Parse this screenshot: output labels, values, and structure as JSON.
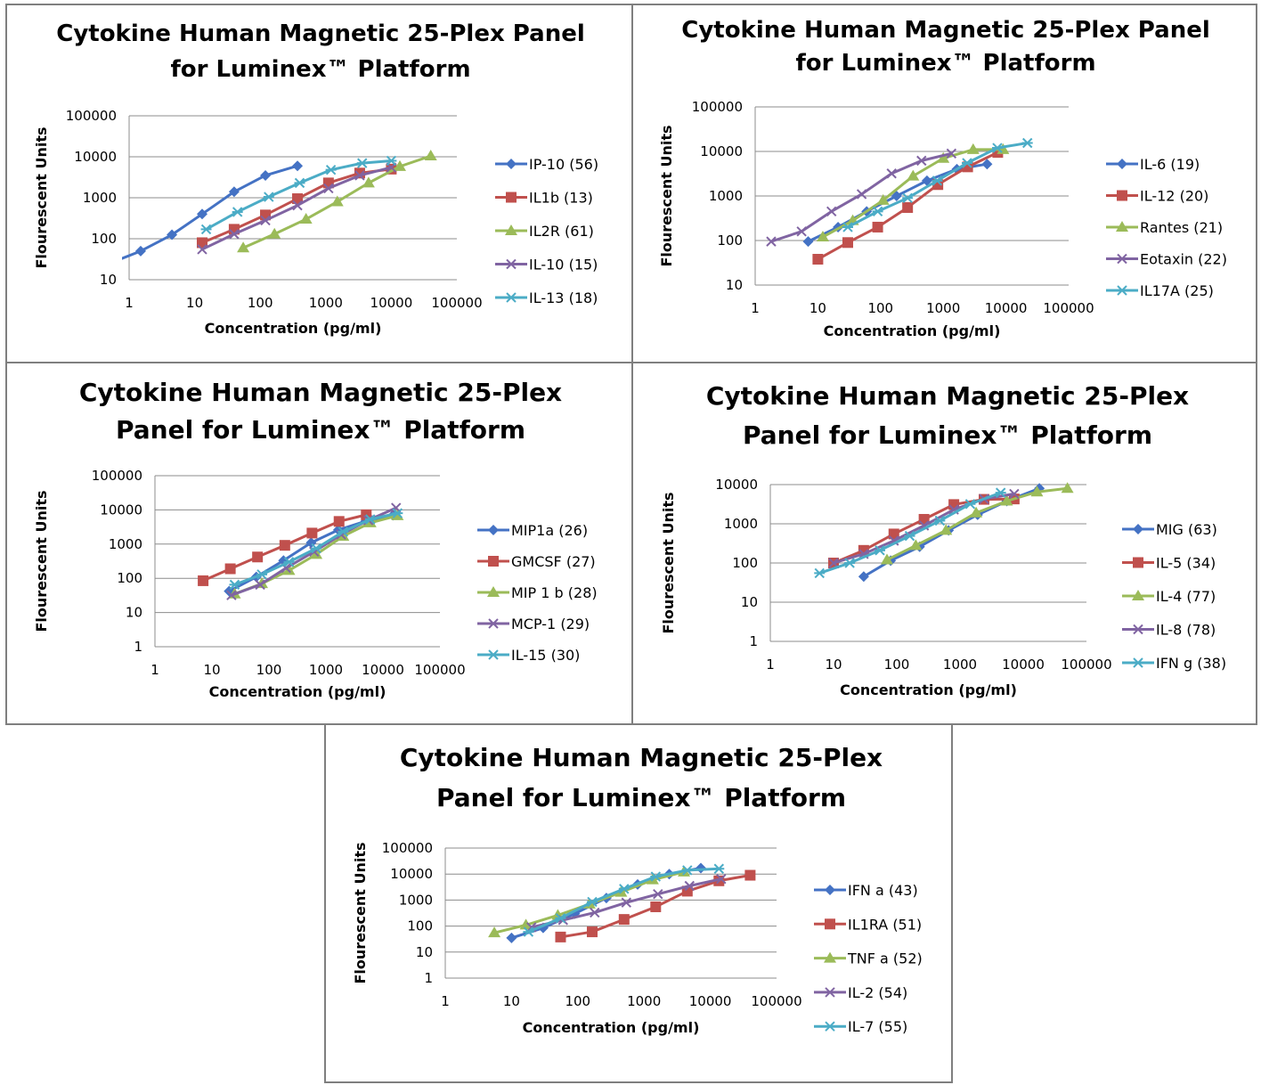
{
  "colors": [
    "#4472c4",
    "#c0504d",
    "#9bbb59",
    "#8064a2",
    "#4bacc6"
  ],
  "chart_data": [
    {
      "type": "line",
      "title": [
        "Cytokine Human Magnetic 25-Plex Panel",
        "for Luminex™ Platform"
      ],
      "xlabel": "Concentration (pg/ml)",
      "ylabel": "Flourescent Units",
      "xscale": "log",
      "yscale": "log",
      "xlim": [
        1,
        100000
      ],
      "ylim": [
        10,
        100000
      ],
      "xticks": [
        "1",
        "10",
        "100",
        "1000",
        "10000",
        "100000"
      ],
      "yticks": [
        "10",
        "100",
        "1000",
        "10000",
        "100000"
      ],
      "grid": "horizontal",
      "legend": "right",
      "series": [
        {
          "name": "IP-10 (56)",
          "marker": "diamond",
          "x": [
            0.5,
            1.5,
            4.5,
            13,
            40,
            120,
            370
          ],
          "y": [
            25,
            50,
            125,
            400,
            1400,
            3500,
            6000
          ]
        },
        {
          "name": "IL1b (13)",
          "marker": "square",
          "x": [
            13,
            40,
            120,
            370,
            1100,
            3300,
            10000
          ],
          "y": [
            80,
            170,
            380,
            950,
            2300,
            4000,
            5000
          ]
        },
        {
          "name": "IL2R (61)",
          "marker": "triangle",
          "x": [
            55,
            165,
            500,
            1500,
            4500,
            13500,
            40000
          ],
          "y": [
            60,
            130,
            300,
            800,
            2300,
            5800,
            10500
          ]
        },
        {
          "name": "IL-10 (15)",
          "marker": "x",
          "x": [
            13,
            40,
            120,
            370,
            1100,
            3300,
            10000
          ],
          "y": [
            55,
            130,
            280,
            650,
            1700,
            3500,
            5500
          ]
        },
        {
          "name": "IL-13 (18)",
          "marker": "asterisk",
          "x": [
            15,
            45,
            135,
            400,
            1200,
            3600,
            10000
          ],
          "y": [
            170,
            450,
            1050,
            2300,
            4800,
            7000,
            8000
          ]
        }
      ]
    },
    {
      "type": "line",
      "title": [
        "Cytokine Human Magnetic 25-Plex Panel",
        "for Luminex™ Platform"
      ],
      "xlabel": "Concentration (pg/ml)",
      "ylabel": "Flourescent Units",
      "xscale": "log",
      "yscale": "log",
      "xlim": [
        1,
        100000
      ],
      "ylim": [
        10,
        100000
      ],
      "xticks": [
        "1",
        "10",
        "100",
        "1000",
        "10000",
        "100000"
      ],
      "yticks": [
        "10",
        "100",
        "1000",
        "10000",
        "100000"
      ],
      "grid": "horizontal",
      "legend": "right",
      "series": [
        {
          "name": "IL-6 (19)",
          "marker": "diamond",
          "x": [
            7,
            21,
            60,
            180,
            550,
            1650,
            5000
          ],
          "y": [
            95,
            200,
            450,
            1000,
            2200,
            4000,
            5200
          ]
        },
        {
          "name": "IL-12 (20)",
          "marker": "square",
          "x": [
            10,
            30,
            90,
            270,
            820,
            2450,
            7400
          ],
          "y": [
            38,
            90,
            200,
            550,
            1800,
            4500,
            9500
          ]
        },
        {
          "name": "Rantes (21)",
          "marker": "triangle",
          "x": [
            12,
            36,
            110,
            330,
            1000,
            3000,
            9000
          ],
          "y": [
            120,
            280,
            800,
            2800,
            7000,
            11000,
            11000
          ]
        },
        {
          "name": "Eotaxin (22)",
          "marker": "x",
          "x": [
            1.8,
            5.5,
            16.5,
            50,
            150,
            450,
            1350
          ],
          "y": [
            95,
            160,
            450,
            1100,
            3200,
            6200,
            9000
          ]
        },
        {
          "name": "IL17A (25)",
          "marker": "asterisk",
          "x": [
            30,
            90,
            270,
            800,
            2400,
            7300,
            22000
          ],
          "y": [
            200,
            450,
            900,
            2200,
            5500,
            12000,
            15500
          ]
        }
      ]
    },
    {
      "type": "line",
      "title": [
        "Cytokine Human Magnetic 25-Plex",
        "Panel for Luminex™ Platform"
      ],
      "xlabel": "Concentration (pg/ml)",
      "ylabel": "Flourescent Units",
      "xscale": "log",
      "yscale": "log",
      "xlim": [
        1,
        100000
      ],
      "ylim": [
        1,
        100000
      ],
      "xticks": [
        "1",
        "10",
        "100",
        "1000",
        "10000",
        "100000"
      ],
      "yticks": [
        "1",
        "10",
        "100",
        "1000",
        "10000",
        "100000"
      ],
      "grid": "horizontal",
      "legend": "right",
      "series": [
        {
          "name": "MIP1a (26)",
          "marker": "diamond",
          "x": [
            20,
            60,
            180,
            550,
            1650,
            5000,
            15000
          ],
          "y": [
            42,
            110,
            330,
            1100,
            2600,
            4700,
            7000
          ]
        },
        {
          "name": "GMCSF (27)",
          "marker": "square",
          "x": [
            7,
            21,
            63,
            190,
            570,
            1700,
            5100
          ],
          "y": [
            85,
            190,
            420,
            920,
            2100,
            4600,
            7200
          ]
        },
        {
          "name": "MIP 1 b (28)",
          "marker": "triangle",
          "x": [
            25,
            75,
            225,
            675,
            2000,
            6000,
            18000
          ],
          "y": [
            35,
            70,
            170,
            500,
            1700,
            4200,
            6800
          ]
        },
        {
          "name": "MCP-1 (29)",
          "marker": "x",
          "x": [
            22,
            70,
            200,
            620,
            1850,
            5550,
            17000
          ],
          "y": [
            32,
            65,
            200,
            600,
            1900,
            5000,
            11500
          ]
        },
        {
          "name": "IL-15 (30)",
          "marker": "asterisk",
          "x": [
            25,
            75,
            225,
            675,
            2000,
            6000,
            18000
          ],
          "y": [
            65,
            130,
            300,
            750,
            2300,
            5300,
            8000
          ]
        }
      ]
    },
    {
      "type": "line",
      "title": [
        "Cytokine Human Magnetic 25-Plex",
        "Panel for Luminex™ Platform"
      ],
      "xlabel": "Concentration (pg/ml)",
      "ylabel": "Flourescent Units",
      "xscale": "log",
      "yscale": "log",
      "xlim": [
        1,
        100000
      ],
      "ylim": [
        1,
        10000
      ],
      "xticks": [
        "1",
        "10",
        "100",
        "1000",
        "10000",
        "100000"
      ],
      "yticks": [
        "1",
        "10",
        "100",
        "1000",
        "10000"
      ],
      "grid": "horizontal",
      "legend": "right",
      "series": [
        {
          "name": "MIG (63)",
          "marker": "diamond",
          "x": [
            30,
            80,
            230,
            660,
            1900,
            5500,
            18000
          ],
          "y": [
            45,
            115,
            260,
            680,
            1700,
            3800,
            8000
          ]
        },
        {
          "name": "IL-5 (34)",
          "marker": "square",
          "x": [
            10,
            30,
            90,
            270,
            800,
            2400,
            7200
          ],
          "y": [
            100,
            210,
            550,
            1300,
            3100,
            4200,
            4300
          ]
        },
        {
          "name": "IL-4 (77)",
          "marker": "triangle",
          "x": [
            70,
            200,
            600,
            1800,
            5500,
            16500,
            50000
          ],
          "y": [
            120,
            280,
            680,
            1900,
            3800,
            6500,
            8000
          ]
        },
        {
          "name": "IL-8 (78)",
          "marker": "x",
          "x": [
            10,
            30,
            90,
            270,
            800,
            2400,
            7200
          ],
          "y": [
            100,
            170,
            370,
            900,
            2300,
            4300,
            5800
          ]
        },
        {
          "name": "IFN g (38)",
          "marker": "asterisk",
          "x": [
            6,
            18,
            54,
            160,
            480,
            1450,
            4400
          ],
          "y": [
            55,
            100,
            210,
            490,
            1200,
            3200,
            6200
          ]
        }
      ]
    },
    {
      "type": "line",
      "title": [
        "Cytokine Human Magnetic 25-Plex",
        "Panel for Luminex™ Platform"
      ],
      "xlabel": "Concentration (pg/ml)",
      "ylabel": "Flourescent Units",
      "xscale": "log",
      "yscale": "log",
      "xlim": [
        1,
        100000
      ],
      "ylim": [
        1,
        100000
      ],
      "xticks": [
        "1",
        "10",
        "100",
        "1000",
        "10000",
        "100000"
      ],
      "yticks": [
        "1",
        "10",
        "100",
        "1000",
        "10000",
        "100000"
      ],
      "grid": "horizontal",
      "legend": "right",
      "series": [
        {
          "name": "IFN a (43)",
          "marker": "diamond",
          "x": [
            10,
            30,
            90,
            270,
            800,
            2400,
            7200
          ],
          "y": [
            35,
            85,
            300,
            1200,
            4000,
            10000,
            17000
          ]
        },
        {
          "name": "IL1RA (51)",
          "marker": "square",
          "x": [
            55,
            165,
            500,
            1500,
            4500,
            13500,
            40000
          ],
          "y": [
            38,
            60,
            180,
            550,
            2200,
            5500,
            9000
          ]
        },
        {
          "name": "TNF a (52)",
          "marker": "triangle",
          "x": [
            5.5,
            16.5,
            50,
            150,
            450,
            1350,
            4000
          ],
          "y": [
            55,
            110,
            260,
            700,
            2000,
            6000,
            12000
          ]
        },
        {
          "name": "IL-2 (54)",
          "marker": "x",
          "x": [
            20,
            60,
            180,
            540,
            1620,
            4860,
            14600
          ],
          "y": [
            90,
            170,
            330,
            800,
            1700,
            3500,
            6500
          ]
        },
        {
          "name": "IL-7 (55)",
          "marker": "asterisk",
          "x": [
            18,
            55,
            165,
            500,
            1500,
            4500,
            13500
          ],
          "y": [
            60,
            200,
            850,
            2700,
            8000,
            14000,
            16000
          ]
        }
      ]
    }
  ]
}
